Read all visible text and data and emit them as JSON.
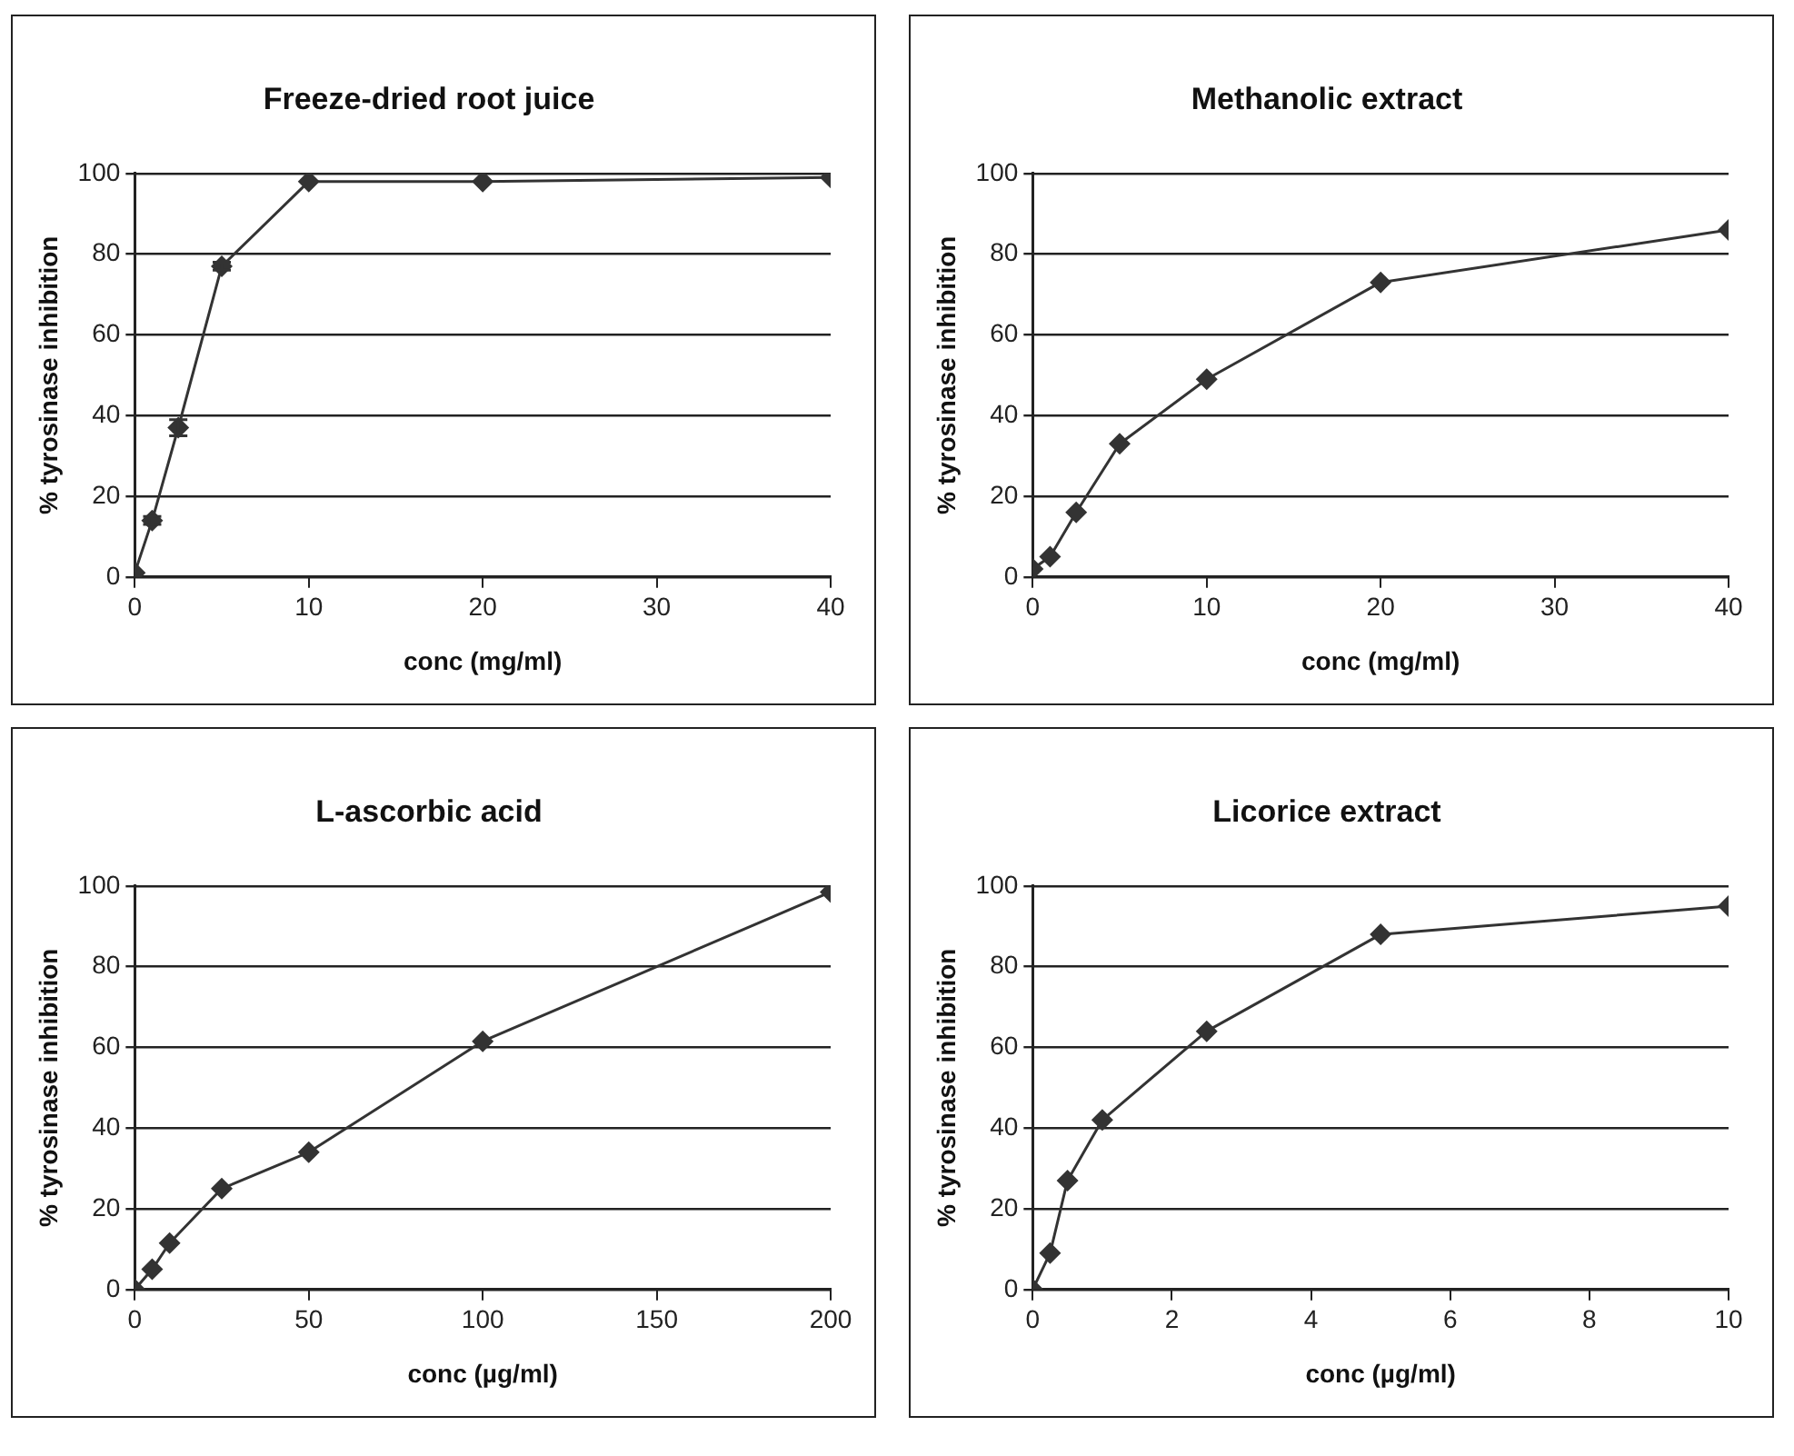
{
  "chart_data": [
    {
      "type": "line",
      "title": "Freeze-dried root juice",
      "xlabel": "conc (mg/ml)",
      "ylabel": "% tyrosinase inhibition",
      "x": [
        0,
        1,
        2.5,
        5,
        10,
        20,
        40
      ],
      "values": [
        1,
        14,
        37,
        77,
        98,
        98,
        99
      ],
      "errors": [
        null,
        1,
        2,
        1,
        null,
        null,
        null
      ],
      "color": "#333333",
      "marker": "diamond",
      "xlim": [
        0,
        40
      ],
      "xticks": [
        0,
        10,
        20,
        30,
        40
      ],
      "ylim": [
        0,
        100
      ],
      "yticks": [
        0,
        20,
        40,
        60,
        80,
        100
      ],
      "grid": "y"
    },
    {
      "type": "line",
      "title": "Methanolic extract",
      "xlabel": "conc (mg/ml)",
      "ylabel": "% tyrosinase inhibition",
      "x": [
        0,
        1,
        2.5,
        5,
        10,
        20,
        40
      ],
      "values": [
        2,
        5,
        16,
        33,
        49,
        73,
        86
      ],
      "color": "#333333",
      "marker": "diamond",
      "xlim": [
        0,
        40
      ],
      "xticks": [
        0,
        10,
        20,
        30,
        40
      ],
      "ylim": [
        0,
        100
      ],
      "yticks": [
        0,
        20,
        40,
        60,
        80,
        100
      ],
      "grid": "y"
    },
    {
      "type": "line",
      "title": "L-ascorbic acid",
      "xlabel": "conc (µg/ml)",
      "ylabel": "% tyrosinase inhibition",
      "x": [
        0,
        5,
        10,
        25,
        50,
        100,
        200
      ],
      "values": [
        0,
        5,
        11.5,
        25,
        34,
        61.5,
        98.5
      ],
      "color": "#333333",
      "marker": "diamond",
      "xlim": [
        0,
        200
      ],
      "xticks": [
        0,
        50,
        100,
        150,
        200
      ],
      "ylim": [
        0,
        100
      ],
      "yticks": [
        0,
        20,
        40,
        60,
        80,
        100
      ],
      "grid": "y"
    },
    {
      "type": "line",
      "title": "Licorice extract",
      "xlabel": "conc (µg/ml)",
      "ylabel": "% tyrosinase inhibition",
      "x": [
        0,
        0.25,
        0.5,
        1,
        2.5,
        5,
        10
      ],
      "values": [
        0,
        9,
        27,
        42,
        64,
        88,
        95
      ],
      "color": "#333333",
      "marker": "diamond",
      "xlim": [
        0,
        10
      ],
      "xticks": [
        0,
        2,
        4,
        6,
        8,
        10
      ],
      "ylim": [
        0,
        100
      ],
      "yticks": [
        0,
        20,
        40,
        60,
        80,
        100
      ],
      "grid": "y"
    }
  ]
}
